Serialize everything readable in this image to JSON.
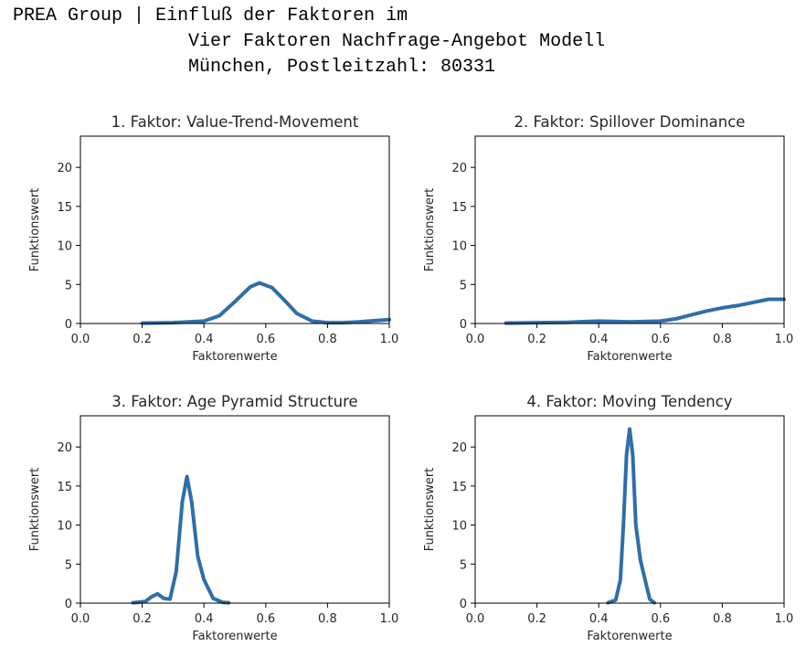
{
  "header": {
    "brand": "PREA Group",
    "separator": "|",
    "title_line1": "Einfluß der Faktoren im",
    "title_line2": "Vier Faktoren Nachfrage-Angebot Modell",
    "title_line3": "München, Postleitzahl: 80331"
  },
  "chart_data": [
    {
      "type": "line",
      "title": "1. Faktor: Value-Trend-Movement",
      "xlabel": "Faktorenwerte",
      "ylabel": "Funktionswert",
      "xlim": [
        0.0,
        1.0
      ],
      "ylim": [
        0,
        24
      ],
      "xticks": [
        "0.0",
        "0.2",
        "0.4",
        "0.6",
        "0.8",
        "1.0"
      ],
      "yticks": [
        "0",
        "5",
        "10",
        "15",
        "20"
      ],
      "grid": false,
      "color": "#2f6ea8",
      "x": [
        0.2,
        0.3,
        0.4,
        0.45,
        0.5,
        0.55,
        0.58,
        0.62,
        0.66,
        0.7,
        0.75,
        0.8,
        0.85,
        0.9,
        0.95,
        1.0
      ],
      "y": [
        0.05,
        0.1,
        0.3,
        1.0,
        2.8,
        4.7,
        5.2,
        4.6,
        3.0,
        1.3,
        0.3,
        0.1,
        0.1,
        0.2,
        0.35,
        0.5
      ]
    },
    {
      "type": "line",
      "title": "2. Faktor: Spillover Dominance",
      "xlabel": "Faktorenwerte",
      "ylabel": "Funktionswert",
      "xlim": [
        0.0,
        1.0
      ],
      "ylim": [
        0,
        24
      ],
      "xticks": [
        "0.0",
        "0.2",
        "0.4",
        "0.6",
        "0.8",
        "1.0"
      ],
      "yticks": [
        "0",
        "5",
        "10",
        "15",
        "20"
      ],
      "grid": false,
      "color": "#2f6ea8",
      "x": [
        0.1,
        0.2,
        0.3,
        0.4,
        0.5,
        0.6,
        0.65,
        0.7,
        0.75,
        0.8,
        0.85,
        0.9,
        0.95,
        1.0
      ],
      "y": [
        0.05,
        0.1,
        0.15,
        0.3,
        0.2,
        0.3,
        0.6,
        1.1,
        1.6,
        2.0,
        2.3,
        2.7,
        3.1,
        3.1
      ]
    },
    {
      "type": "line",
      "title": "3. Faktor: Age Pyramid Structure",
      "xlabel": "Faktorenwerte",
      "ylabel": "Funktionswert",
      "xlim": [
        0.0,
        1.0
      ],
      "ylim": [
        0,
        24
      ],
      "xticks": [
        "0.0",
        "0.2",
        "0.4",
        "0.6",
        "0.8",
        "1.0"
      ],
      "yticks": [
        "0",
        "5",
        "10",
        "15",
        "20"
      ],
      "grid": false,
      "color": "#2f6ea8",
      "x": [
        0.17,
        0.21,
        0.23,
        0.25,
        0.27,
        0.29,
        0.31,
        0.33,
        0.345,
        0.36,
        0.38,
        0.4,
        0.43,
        0.46,
        0.48
      ],
      "y": [
        0.05,
        0.2,
        0.8,
        1.2,
        0.6,
        0.5,
        4.0,
        13.0,
        16.2,
        13.0,
        6.0,
        3.0,
        0.6,
        0.1,
        0.05
      ]
    },
    {
      "type": "line",
      "title": "4. Faktor: Moving Tendency",
      "xlabel": "Faktorenwerte",
      "ylabel": "Funktionswert",
      "xlim": [
        0.0,
        1.0
      ],
      "ylim": [
        0,
        24
      ],
      "xticks": [
        "0.0",
        "0.2",
        "0.4",
        "0.6",
        "0.8",
        "1.0"
      ],
      "yticks": [
        "0",
        "5",
        "10",
        "15",
        "20"
      ],
      "grid": false,
      "color": "#2f6ea8",
      "x": [
        0.43,
        0.455,
        0.47,
        0.48,
        0.49,
        0.5,
        0.51,
        0.52,
        0.535,
        0.55,
        0.565,
        0.58
      ],
      "y": [
        0.05,
        0.4,
        3.0,
        10.0,
        19.0,
        22.3,
        19.0,
        10.0,
        5.5,
        3.0,
        0.5,
        0.05
      ]
    }
  ]
}
